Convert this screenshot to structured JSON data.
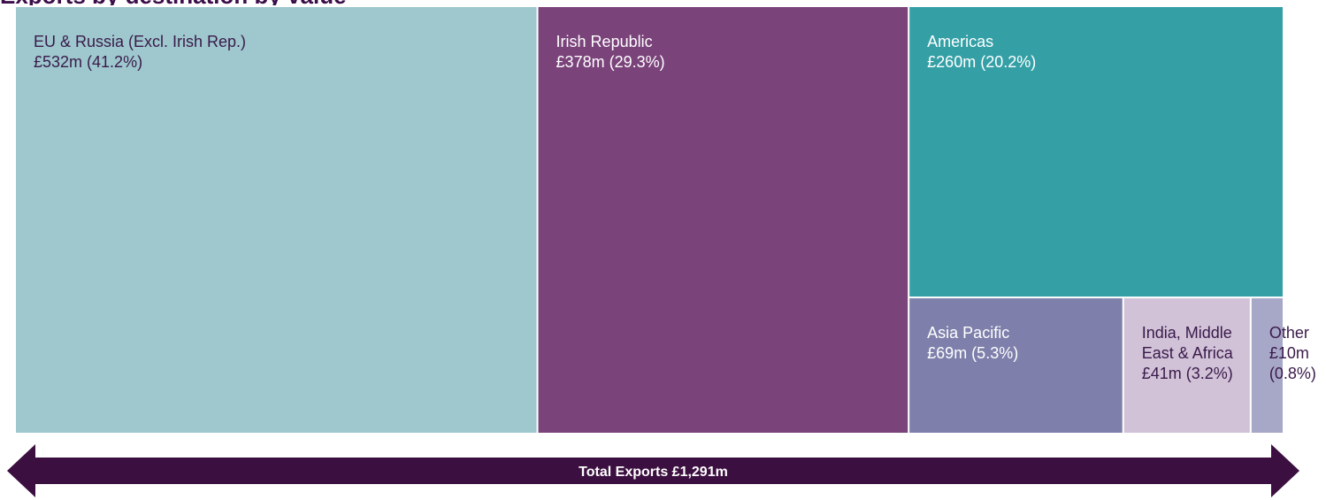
{
  "chart_data": {
    "type": "treemap",
    "title": "",
    "unit": "£m",
    "total_label": "Total Exports £1,291m",
    "total_value": 1291,
    "segments": [
      {
        "key": "eu",
        "name_lines": [
          "EU & Russia (Excl. Irish Rep.)"
        ],
        "value_lines": [
          "£532m (41.2%)"
        ],
        "value": 532,
        "percent": 41.2,
        "color": "#9ec8ce",
        "text_color": "#3a1a4a"
      },
      {
        "key": "irish",
        "name_lines": [
          "Irish Republic"
        ],
        "value_lines": [
          "£378m (29.3%)"
        ],
        "value": 378,
        "percent": 29.3,
        "color": "#7a437a",
        "text_color": "#ffffff"
      },
      {
        "key": "americas",
        "name_lines": [
          "Americas"
        ],
        "value_lines": [
          "£260m (20.2%)"
        ],
        "value": 260,
        "percent": 20.2,
        "color": "#34a0a6",
        "text_color": "#ffffff"
      },
      {
        "key": "asia",
        "name_lines": [
          "Asia Pacific"
        ],
        "value_lines": [
          "£69m (5.3%)"
        ],
        "value": 69,
        "percent": 5.3,
        "color": "#7e80ab",
        "text_color": "#ffffff"
      },
      {
        "key": "imea",
        "name_lines": [
          "India, Middle",
          "East & Africa"
        ],
        "value_lines": [
          "£41m (3.2%)"
        ],
        "value": 41,
        "percent": 3.2,
        "color": "#d1c2d8",
        "text_color": "#3a1a4a"
      },
      {
        "key": "other",
        "name_lines": [
          "Other"
        ],
        "value_lines": [
          "£10m",
          "(0.8%)"
        ],
        "value": 10,
        "percent": 0.8,
        "color": "#a7a7c8",
        "text_color": "#3a1a4a"
      }
    ],
    "colors": {
      "arrow": "#3b0f40",
      "arrow_text": "#ffffff"
    }
  }
}
